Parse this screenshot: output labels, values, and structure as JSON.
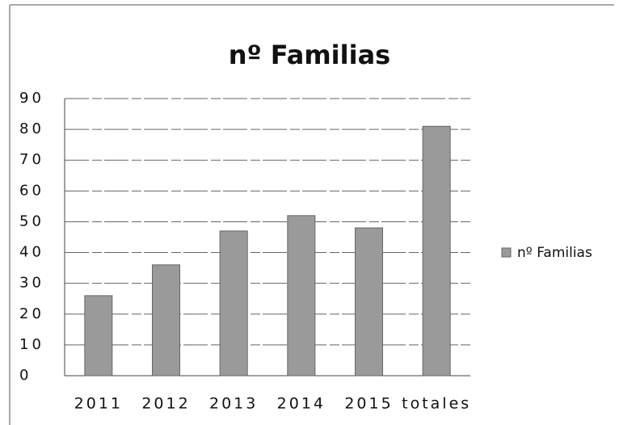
{
  "chart_data": {
    "type": "bar",
    "title": "nº Familias",
    "categories": [
      "2011",
      "2012",
      "2013",
      "2014",
      "2015",
      "totales"
    ],
    "series": [
      {
        "name": "nº Familias",
        "color": "#9a9a9a",
        "values": [
          26,
          36,
          47,
          52,
          48,
          81
        ]
      }
    ],
    "ylim": [
      0,
      90
    ],
    "yticks": [
      0,
      10,
      20,
      30,
      40,
      50,
      60,
      70,
      80,
      90
    ],
    "grid": true,
    "legend": "right"
  }
}
